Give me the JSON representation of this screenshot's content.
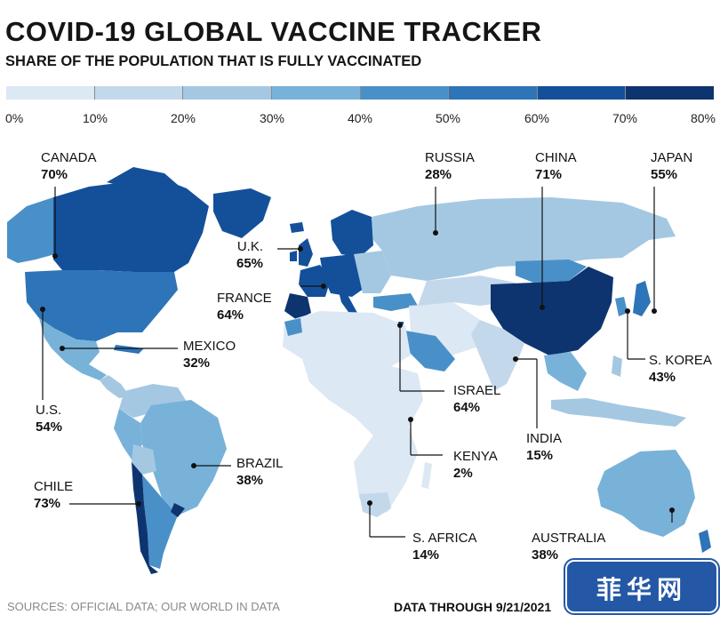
{
  "title": "COVID-19 GLOBAL VACCINE TRACKER",
  "subtitle": "SHARE OF THE POPULATION THAT IS FULLY VACCINATED",
  "legend": {
    "ticks": [
      "0%",
      "10%",
      "20%",
      "30%",
      "40%",
      "50%",
      "60%",
      "70%",
      "80%"
    ],
    "colors": [
      "#dce8f4",
      "#c4d8ec",
      "#a4c8e2",
      "#78b2d9",
      "#4a90c8",
      "#2e74b8",
      "#14509a",
      "#0e3470"
    ]
  },
  "labels": {
    "canada": {
      "name": "CANADA",
      "value": "70%"
    },
    "us": {
      "name": "U.S.",
      "value": "54%"
    },
    "mexico": {
      "name": "MEXICO",
      "value": "32%"
    },
    "brazil": {
      "name": "BRAZIL",
      "value": "38%"
    },
    "chile": {
      "name": "CHILE",
      "value": "73%"
    },
    "uk": {
      "name": "U.K.",
      "value": "65%"
    },
    "france": {
      "name": "FRANCE",
      "value": "64%"
    },
    "russia": {
      "name": "RUSSIA",
      "value": "28%"
    },
    "china": {
      "name": "CHINA",
      "value": "71%"
    },
    "japan": {
      "name": "JAPAN",
      "value": "55%"
    },
    "skorea": {
      "name": "S. KOREA",
      "value": "43%"
    },
    "israel": {
      "name": "ISRAEL",
      "value": "64%"
    },
    "kenya": {
      "name": "KENYA",
      "value": "2%"
    },
    "india": {
      "name": "INDIA",
      "value": "15%"
    },
    "safrica": {
      "name": "S. AFRICA",
      "value": "14%"
    },
    "australia": {
      "name": "AUSTRALIA",
      "value": "38%"
    }
  },
  "sources": "SOURCES: OFFICIAL DATA; OUR WORLD IN DATA",
  "data_through": "DATA THROUGH 9/21/2021",
  "watermark": "菲华网"
}
